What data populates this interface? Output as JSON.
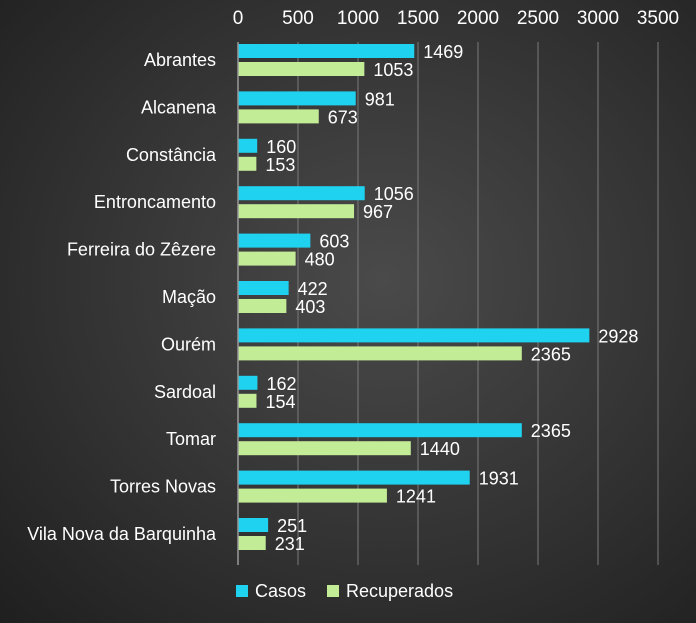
{
  "chart_data": {
    "type": "bar",
    "orientation": "horizontal",
    "title": "",
    "xlabel": "",
    "ylabel": "",
    "xlim": [
      0,
      3500
    ],
    "xticks": [
      0,
      500,
      1000,
      1500,
      2000,
      2500,
      3000,
      3500
    ],
    "xaxis_position": "top",
    "grid": true,
    "legend_position": "bottom",
    "categories": [
      "Abrantes",
      "Alcanena",
      "Constância",
      "Entroncamento",
      "Ferreira do Zêzere",
      "Mação",
      "Ourém",
      "Sardoal",
      "Tomar",
      "Torres Novas",
      "Vila Nova da Barquinha"
    ],
    "series": [
      {
        "name": "Casos",
        "color": "#1fd3f0",
        "values": [
          1469,
          981,
          160,
          1056,
          603,
          422,
          2928,
          162,
          2365,
          1931,
          251
        ]
      },
      {
        "name": "Recuperados",
        "color": "#c2ec96",
        "values": [
          1053,
          673,
          153,
          967,
          480,
          403,
          2365,
          154,
          1440,
          1241,
          231
        ]
      }
    ]
  }
}
